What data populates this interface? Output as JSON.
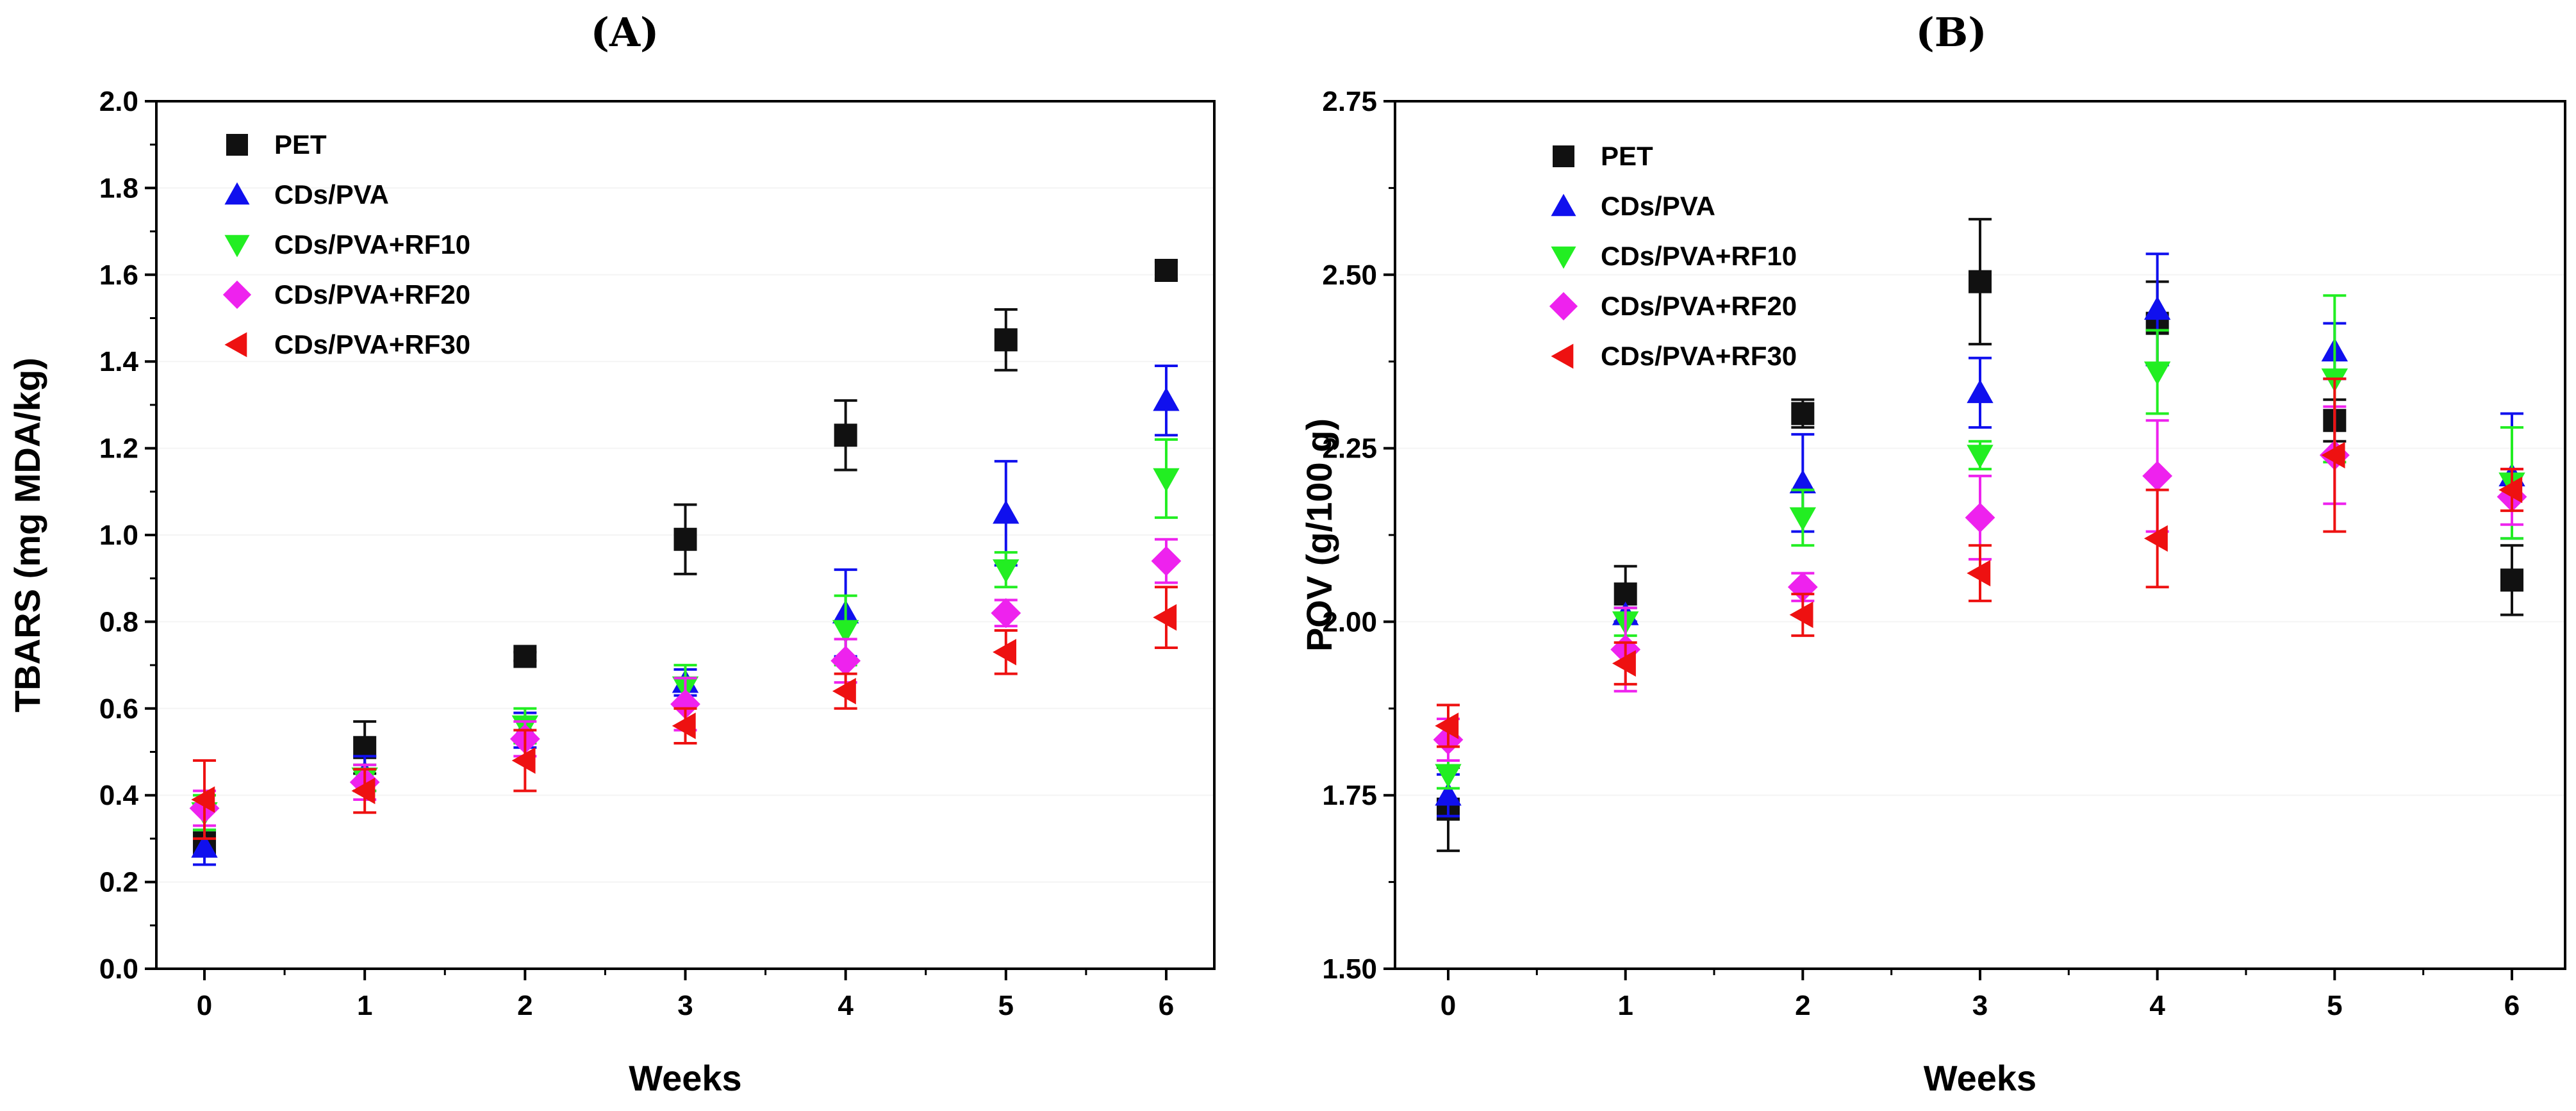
{
  "chart_data": [
    {
      "id": "A",
      "type": "scatter",
      "panel_label": "(A)",
      "xlabel": "Weeks",
      "ylabel": "TBARS (mg MDA/kg)",
      "xlim": [
        -0.3,
        6.3
      ],
      "ylim": [
        0.0,
        2.0
      ],
      "x_ticks": [
        0,
        1,
        2,
        3,
        4,
        5,
        6
      ],
      "x_tick_labels": [
        "0",
        "1",
        "2",
        "3",
        "4",
        "5",
        "6"
      ],
      "y_ticks": [
        0.0,
        0.2,
        0.4,
        0.6,
        0.8,
        1.0,
        1.2,
        1.4,
        1.6,
        1.8,
        2.0
      ],
      "y_tick_labels": [
        "0.0",
        "0.2",
        "0.4",
        "0.6",
        "0.8",
        "1.0",
        "1.2",
        "1.4",
        "1.6",
        "1.8",
        "2.0"
      ],
      "legend_position": "top-left",
      "x": [
        0,
        1,
        2,
        3,
        4,
        5,
        6
      ],
      "series": [
        {
          "name": "PET",
          "marker": "square",
          "color": "#111111",
          "values": [
            0.29,
            0.51,
            0.72,
            0.99,
            1.23,
            1.45,
            1.61
          ],
          "errors": [
            0.03,
            0.06,
            0.01,
            0.08,
            0.08,
            0.07,
            0.02
          ]
        },
        {
          "name": "CDs/PVA",
          "marker": "triangle-up",
          "color": "#1010ee",
          "values": [
            0.28,
            0.45,
            0.55,
            0.66,
            0.82,
            1.05,
            1.31
          ],
          "errors": [
            0.04,
            0.04,
            0.04,
            0.03,
            0.1,
            0.12,
            0.08
          ]
        },
        {
          "name": "CDs/PVA+RF10",
          "marker": "triangle-down",
          "color": "#22ee22",
          "values": [
            0.36,
            0.44,
            0.56,
            0.65,
            0.78,
            0.92,
            1.13
          ],
          "errors": [
            0.04,
            0.03,
            0.04,
            0.05,
            0.08,
            0.04,
            0.09
          ]
        },
        {
          "name": "CDs/PVA+RF20",
          "marker": "diamond",
          "color": "#ee22ee",
          "values": [
            0.37,
            0.43,
            0.53,
            0.61,
            0.71,
            0.82,
            0.94
          ],
          "errors": [
            0.04,
            0.04,
            0.04,
            0.06,
            0.05,
            0.03,
            0.05
          ]
        },
        {
          "name": "CDs/PVA+RF30",
          "marker": "triangle-left",
          "color": "#ee1111",
          "values": [
            0.39,
            0.41,
            0.48,
            0.56,
            0.64,
            0.73,
            0.81
          ],
          "errors": [
            0.09,
            0.05,
            0.07,
            0.04,
            0.04,
            0.05,
            0.07
          ]
        }
      ]
    },
    {
      "id": "B",
      "type": "scatter",
      "panel_label": "(B)",
      "xlabel": "Weeks",
      "ylabel": "POV (g/100 g)",
      "xlim": [
        -0.3,
        6.3
      ],
      "ylim": [
        1.5,
        2.75
      ],
      "x_ticks": [
        0,
        1,
        2,
        3,
        4,
        5,
        6
      ],
      "x_tick_labels": [
        "0",
        "1",
        "2",
        "3",
        "4",
        "5",
        "6"
      ],
      "y_ticks": [
        1.5,
        1.75,
        2.0,
        2.25,
        2.5,
        2.75
      ],
      "y_tick_labels": [
        "1.50",
        "1.75",
        "2.00",
        "2.25",
        "2.50",
        "2.75"
      ],
      "legend_position": "top-left",
      "x": [
        0,
        1,
        2,
        3,
        4,
        5,
        6
      ],
      "series": [
        {
          "name": "PET",
          "marker": "square",
          "color": "#111111",
          "values": [
            1.73,
            2.04,
            2.3,
            2.49,
            2.43,
            2.29,
            2.06
          ],
          "errors": [
            0.06,
            0.04,
            0.02,
            0.09,
            0.06,
            0.03,
            0.05
          ]
        },
        {
          "name": "CDs/PVA",
          "marker": "triangle-up",
          "color": "#1010ee",
          "values": [
            1.75,
            2.01,
            2.2,
            2.33,
            2.45,
            2.39,
            2.21
          ],
          "errors": [
            0.03,
            0.01,
            0.07,
            0.05,
            0.08,
            0.04,
            0.09
          ]
        },
        {
          "name": "CDs/PVA+RF10",
          "marker": "triangle-down",
          "color": "#22ee22",
          "values": [
            1.78,
            2.0,
            2.15,
            2.24,
            2.36,
            2.35,
            2.2
          ],
          "errors": [
            0.02,
            0.02,
            0.04,
            0.02,
            0.06,
            0.12,
            0.08
          ]
        },
        {
          "name": "CDs/PVA+RF20",
          "marker": "diamond",
          "color": "#ee22ee",
          "values": [
            1.83,
            1.96,
            2.05,
            2.15,
            2.21,
            2.24,
            2.18
          ],
          "errors": [
            0.03,
            0.06,
            0.02,
            0.06,
            0.08,
            0.07,
            0.04
          ]
        },
        {
          "name": "CDs/PVA+RF30",
          "marker": "triangle-left",
          "color": "#ee1111",
          "values": [
            1.85,
            1.94,
            2.01,
            2.07,
            2.12,
            2.24,
            2.19
          ],
          "errors": [
            0.03,
            0.03,
            0.03,
            0.04,
            0.07,
            0.11,
            0.03
          ]
        }
      ]
    }
  ]
}
